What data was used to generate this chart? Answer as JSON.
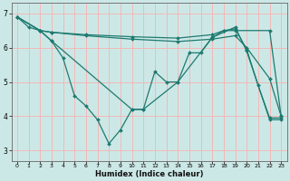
{
  "xlabel": "Humidex (Indice chaleur)",
  "bg_color": "#cce8e6",
  "grid_color": "#f2b8b8",
  "line_color": "#1e7a70",
  "xlim": [
    -0.5,
    23.5
  ],
  "ylim": [
    2.7,
    7.3
  ],
  "yticks": [
    3,
    4,
    5,
    6,
    7
  ],
  "xticks": [
    0,
    1,
    2,
    3,
    4,
    5,
    6,
    7,
    8,
    9,
    10,
    11,
    12,
    13,
    14,
    15,
    16,
    17,
    18,
    19,
    20,
    21,
    22,
    23
  ],
  "series": [
    {
      "x": [
        0,
        1,
        2,
        3,
        4,
        5,
        6,
        7,
        8,
        9,
        10,
        11,
        12,
        13,
        14,
        15,
        16,
        17,
        18,
        19,
        20,
        21,
        22,
        23
      ],
      "y": [
        6.9,
        6.6,
        6.5,
        6.2,
        5.7,
        4.6,
        4.3,
        3.9,
        3.2,
        3.6,
        4.2,
        4.2,
        5.3,
        5.0,
        5.0,
        5.85,
        5.85,
        6.3,
        6.5,
        6.55,
        5.95,
        4.9,
        3.95,
        3.95
      ]
    },
    {
      "x": [
        0,
        2,
        3,
        6,
        10,
        14,
        17,
        18,
        19,
        22,
        23
      ],
      "y": [
        6.9,
        6.5,
        6.45,
        6.38,
        6.32,
        6.28,
        6.38,
        6.5,
        6.5,
        6.5,
        4.0
      ]
    },
    {
      "x": [
        0,
        2,
        3,
        6,
        10,
        14,
        17,
        19,
        20,
        22,
        23
      ],
      "y": [
        6.9,
        6.5,
        6.45,
        6.35,
        6.25,
        6.18,
        6.25,
        6.35,
        6.0,
        5.1,
        4.0
      ]
    },
    {
      "x": [
        0,
        2,
        3,
        10,
        11,
        14,
        17,
        19,
        20,
        22,
        23
      ],
      "y": [
        6.9,
        6.5,
        6.2,
        4.2,
        4.2,
        5.0,
        6.3,
        6.6,
        5.9,
        3.9,
        3.9
      ]
    }
  ]
}
